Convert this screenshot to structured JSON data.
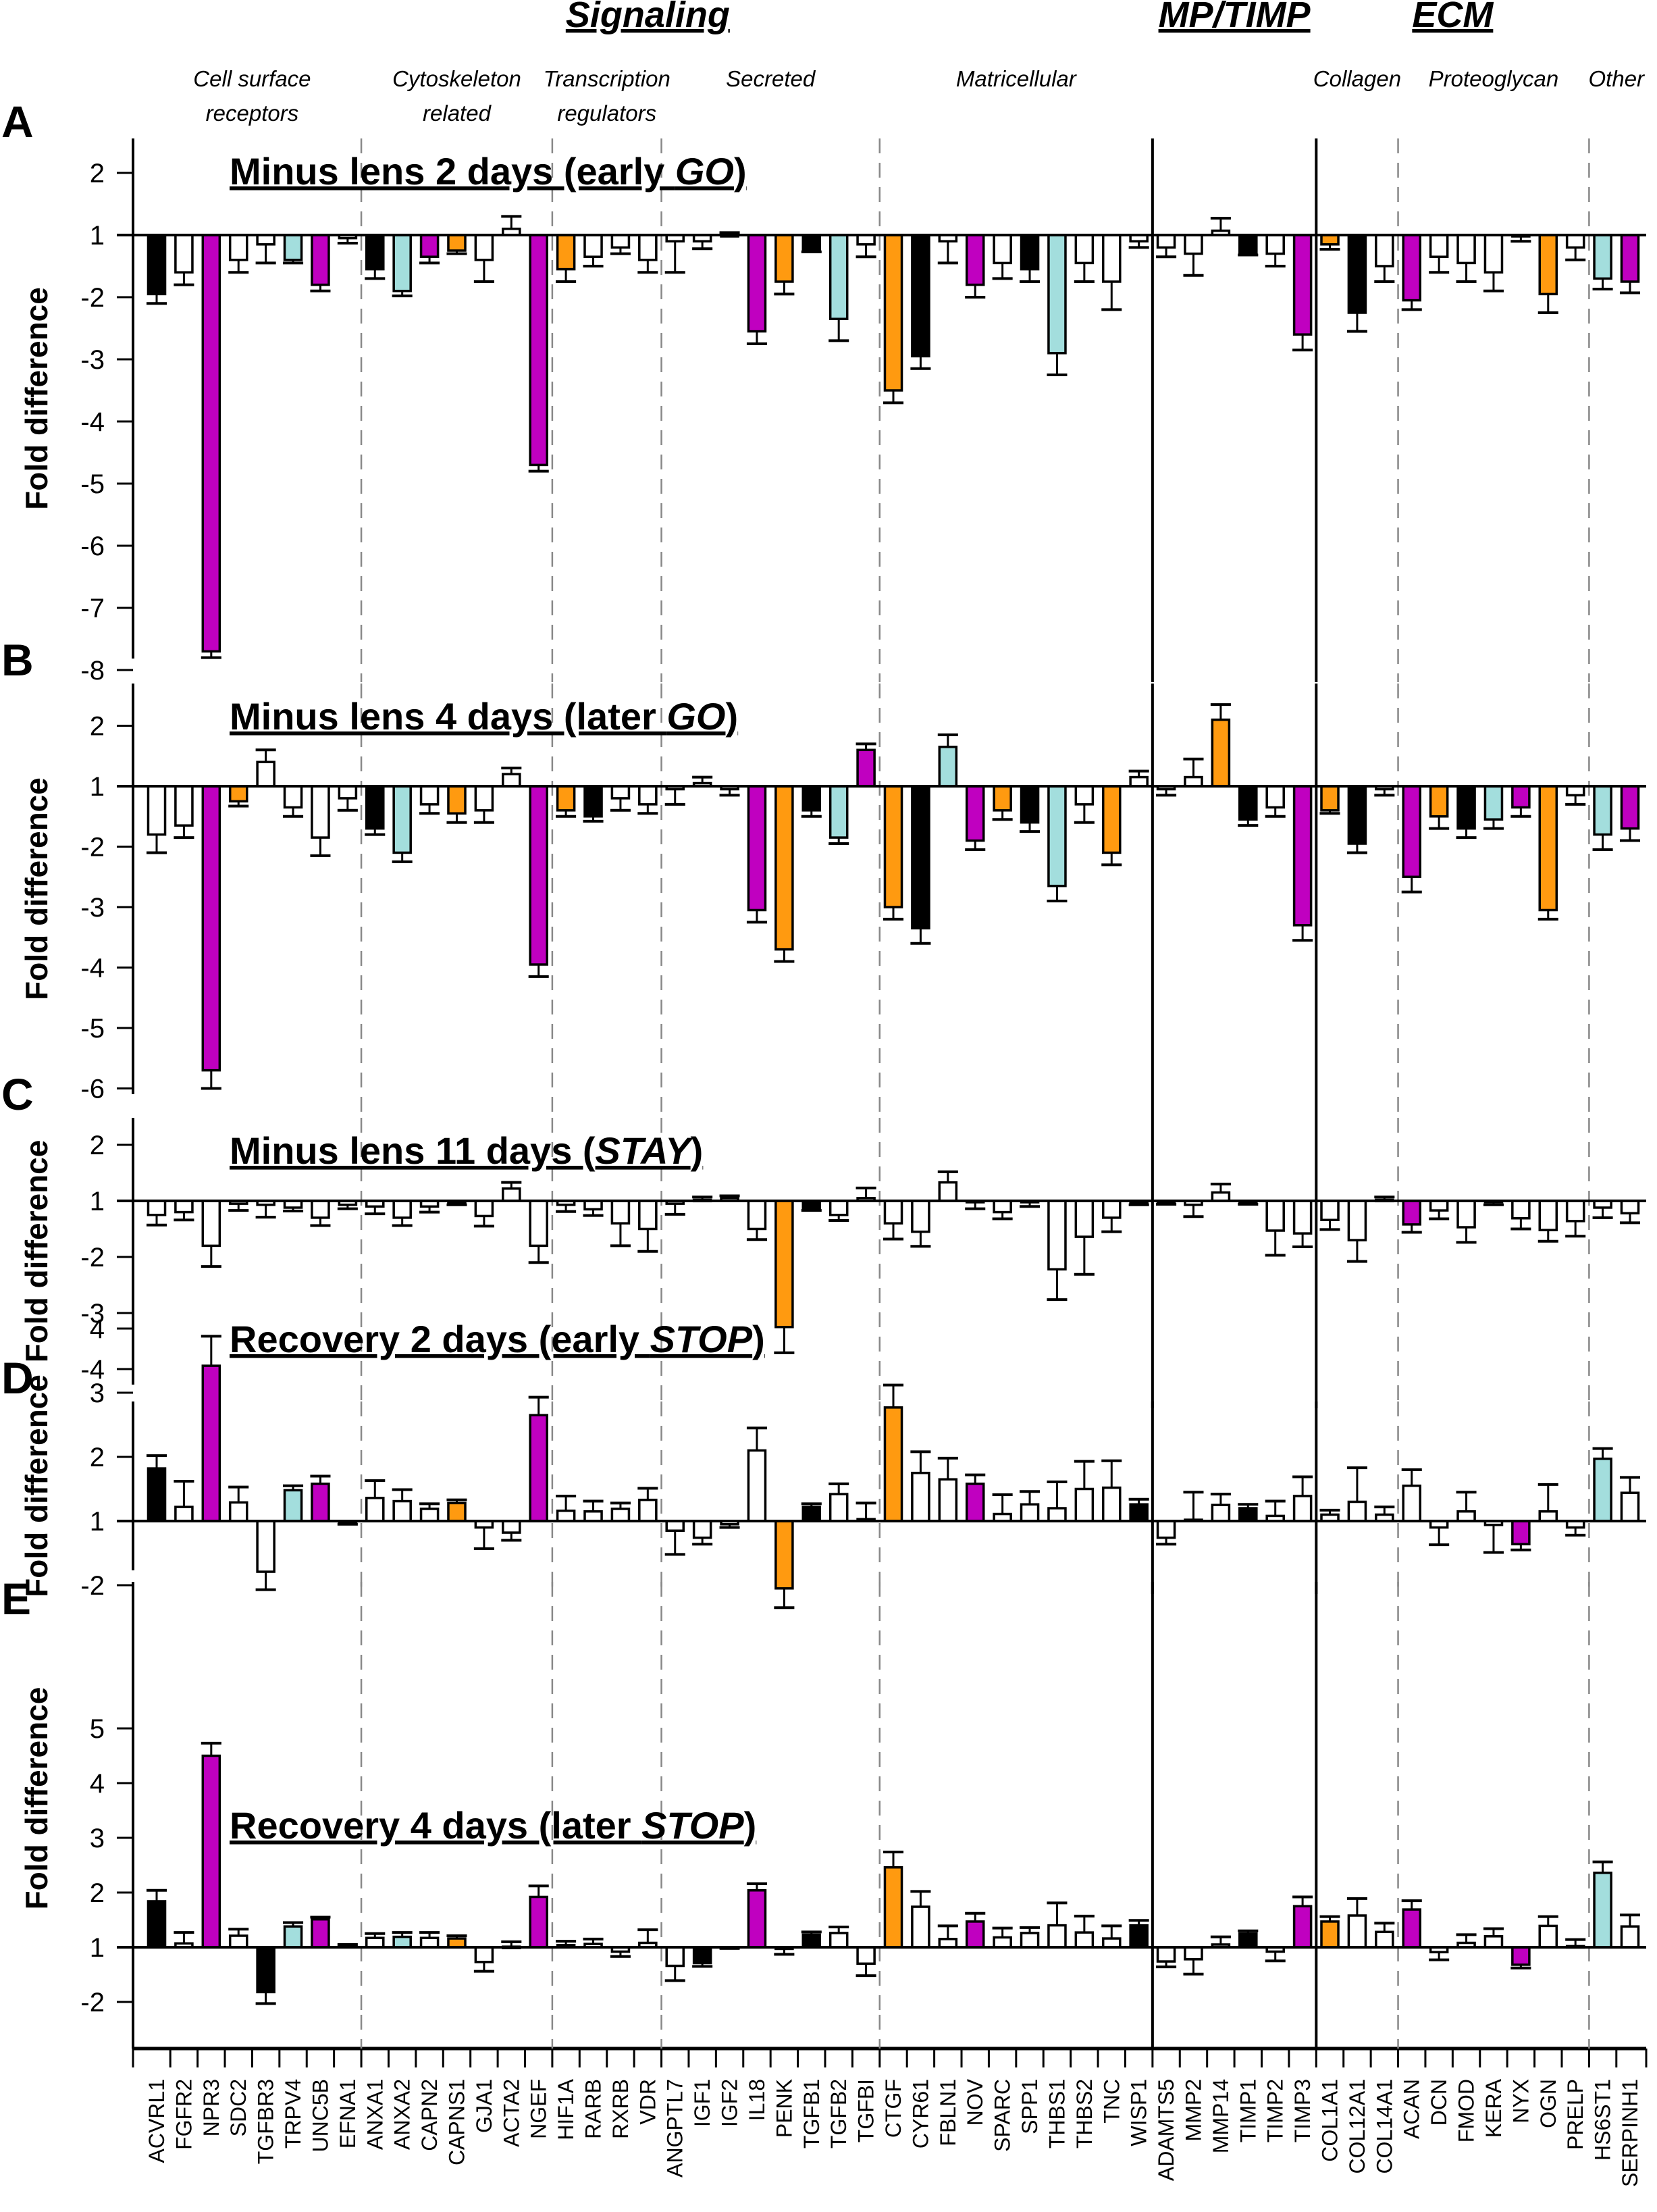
{
  "chart_data": {
    "type": "bar",
    "ylabel": "Fold difference",
    "categories_top": [
      {
        "name": "Signaling",
        "first": 0,
        "last": 36
      },
      {
        "name": "MP/TIMP",
        "first": 37,
        "last": 42
      },
      {
        "name": "ECM",
        "first": 43,
        "last": 52
      }
    ],
    "subgroups": [
      {
        "name": "Cell surface receptors",
        "lines": [
          "Cell surface",
          "receptors"
        ],
        "first": 0,
        "last": 7
      },
      {
        "name": "Cytoskeleton related",
        "lines": [
          "Cytoskeleton",
          "related"
        ],
        "first": 8,
        "last": 14
      },
      {
        "name": "Transcription regulators",
        "lines": [
          "Transcription",
          "regulators"
        ],
        "first": 15,
        "last": 18
      },
      {
        "name": "Secreted",
        "lines": [
          "Secreted"
        ],
        "first": 19,
        "last": 26
      },
      {
        "name": "Matricellular",
        "lines": [
          "Matricellular"
        ],
        "first": 27,
        "last": 36
      },
      {
        "name": "MP/TIMP",
        "lines": [],
        "first": 37,
        "last": 42
      },
      {
        "name": "Collagen",
        "lines": [
          "Collagen"
        ],
        "first": 43,
        "last": 45
      },
      {
        "name": "Proteoglycan",
        "lines": [
          "Proteoglycan"
        ],
        "first": 46,
        "last": 52
      },
      {
        "name": "Other",
        "lines": [
          "Other"
        ],
        "first": 53,
        "last": 54
      }
    ],
    "separators": [
      {
        "after": 7,
        "style": "dashed"
      },
      {
        "after": 14,
        "style": "dashed"
      },
      {
        "after": 18,
        "style": "dashed"
      },
      {
        "after": 26,
        "style": "dashed"
      },
      {
        "after": 36,
        "style": "solid"
      },
      {
        "after": 42,
        "style": "solid"
      },
      {
        "after": 45,
        "style": "dashed"
      },
      {
        "after": 52,
        "style": "dashed"
      }
    ],
    "genes": [
      "ACVRL1",
      "FGFR2",
      "NPR3",
      "SDC2",
      "TGFBR3",
      "TRPV4",
      "UNC5B",
      "EFNA1",
      "ANXA1",
      "ANXA2",
      "CAPN2",
      "CAPNS1",
      "GJA1",
      "ACTA2",
      "NGEF",
      "HIF1A",
      "RARB",
      "RXRB",
      "VDR",
      "ANGPTL7",
      "IGF1",
      "IGF2",
      "IL18",
      "PENK",
      "TGFB1",
      "TGFB2",
      "TGFBI",
      "CTGF",
      "CYR61",
      "FBLN1",
      "NOV",
      "SPARC",
      "SPP1",
      "THBS1",
      "THBS2",
      "TNC",
      "WISP1",
      "ADAMTS5",
      "MMP2",
      "MMP14",
      "TIMP1",
      "TIMP2",
      "TIMP3",
      "COL1A1",
      "COL12A1",
      "COL14A1",
      "ACAN",
      "DCN",
      "FMOD",
      "KERA",
      "NYX",
      "OGN",
      "PRELP",
      "HS6ST1",
      "SERPINH1"
    ],
    "colors": {
      "w": "#ffffff",
      "k": "#000000",
      "m": "#c000c0",
      "o": "#ff9a10",
      "c": "#a3dedd"
    },
    "panels": [
      {
        "letter": "A",
        "title_pre": "Minus lens 2 days (early ",
        "title_em": "GO",
        "title_post": ")",
        "yticks": [
          2,
          1,
          -2,
          -3,
          -4,
          -5,
          -6,
          -7,
          -8
        ],
        "yrange": [
          2.5,
          -8
        ],
        "values": [
          -1.95,
          -1.6,
          -7.7,
          -1.4,
          -1.15,
          -1.4,
          -1.8,
          -1.05,
          -1.55,
          -1.9,
          -1.35,
          -1.25,
          -1.4,
          1.1,
          -4.7,
          -1.55,
          -1.35,
          -1.2,
          -1.4,
          -1.1,
          -1.1,
          1.0,
          -2.55,
          -1.75,
          -1.25,
          -2.35,
          -1.15,
          -3.5,
          -2.95,
          -1.1,
          -1.8,
          -1.45,
          -1.55,
          -2.9,
          -1.45,
          -1.75,
          -1.1,
          -1.2,
          -1.3,
          1.07,
          -1.3,
          -1.3,
          -2.6,
          -1.15,
          -2.25,
          -1.5,
          -2.05,
          -1.35,
          -1.45,
          -1.6,
          -1.0,
          -1.95,
          -1.2,
          -1.7,
          -1.75
        ],
        "errors": [
          0.15,
          0.2,
          0.1,
          0.2,
          0.3,
          0.05,
          0.1,
          0.08,
          0.15,
          0.08,
          0.1,
          0.05,
          0.35,
          0.2,
          0.1,
          0.2,
          0.15,
          0.1,
          0.2,
          0.5,
          0.12,
          0.04,
          0.2,
          0.2,
          0.02,
          0.35,
          0.2,
          0.2,
          0.2,
          0.35,
          0.2,
          0.25,
          0.2,
          0.35,
          0.3,
          0.45,
          0.1,
          0.15,
          0.35,
          0.2,
          0.02,
          0.2,
          0.25,
          0.08,
          0.3,
          0.25,
          0.15,
          0.25,
          0.3,
          0.3,
          0.1,
          0.3,
          0.2,
          0.17,
          0.18
        ],
        "fills": [
          "k",
          "w",
          "m",
          "w",
          "w",
          "c",
          "m",
          "w",
          "k",
          "c",
          "m",
          "o",
          "w",
          "w",
          "m",
          "o",
          "w",
          "w",
          "w",
          "w",
          "w",
          "w",
          "m",
          "o",
          "k",
          "c",
          "w",
          "o",
          "k",
          "w",
          "m",
          "w",
          "k",
          "c",
          "w",
          "w",
          "w",
          "w",
          "w",
          "w",
          "k",
          "w",
          "m",
          "o",
          "k",
          "w",
          "m",
          "w",
          "w",
          "w",
          "w",
          "o",
          "w",
          "c",
          "m"
        ]
      },
      {
        "letter": "B",
        "title_pre": "Minus lens 4 days (later ",
        "title_em": "GO",
        "title_post": ")",
        "yticks": [
          2,
          1,
          -2,
          -3,
          -4,
          -5,
          -6
        ],
        "yrange": [
          2.5,
          -6
        ],
        "values": [
          -1.8,
          -1.65,
          -5.7,
          -1.25,
          1.4,
          -1.35,
          -1.85,
          -1.2,
          -1.7,
          -2.1,
          -1.3,
          -1.45,
          -1.4,
          1.2,
          -3.95,
          -1.4,
          -1.5,
          -1.2,
          -1.3,
          -1.05,
          1.05,
          -1.05,
          -3.05,
          -3.7,
          -1.4,
          -1.85,
          1.6,
          -3.0,
          -3.35,
          1.65,
          -1.9,
          -1.4,
          -1.6,
          -2.65,
          -1.3,
          -2.1,
          1.15,
          -1.05,
          1.15,
          2.1,
          -1.55,
          -1.35,
          -3.3,
          -1.4,
          -1.95,
          -1.05,
          -2.5,
          -1.5,
          -1.7,
          -1.55,
          -1.35,
          -3.05,
          -1.15,
          -1.8,
          -1.7
        ],
        "errors": [
          0.3,
          0.2,
          0.3,
          0.08,
          0.2,
          0.15,
          0.3,
          0.2,
          0.1,
          0.15,
          0.15,
          0.15,
          0.2,
          0.1,
          0.2,
          0.1,
          0.08,
          0.2,
          0.15,
          0.25,
          0.1,
          0.1,
          0.2,
          0.2,
          0.1,
          0.1,
          0.1,
          0.2,
          0.25,
          0.2,
          0.15,
          0.15,
          0.15,
          0.25,
          0.3,
          0.2,
          0.1,
          0.1,
          0.3,
          0.25,
          0.1,
          0.15,
          0.25,
          0.05,
          0.15,
          0.1,
          0.25,
          0.2,
          0.15,
          0.15,
          0.15,
          0.15,
          0.15,
          0.25,
          0.2
        ],
        "fills": [
          "w",
          "w",
          "m",
          "o",
          "w",
          "w",
          "w",
          "w",
          "k",
          "c",
          "w",
          "o",
          "w",
          "w",
          "m",
          "o",
          "k",
          "w",
          "w",
          "w",
          "w",
          "w",
          "m",
          "o",
          "k",
          "c",
          "m",
          "o",
          "k",
          "c",
          "m",
          "o",
          "k",
          "c",
          "w",
          "o",
          "w",
          "w",
          "w",
          "o",
          "k",
          "w",
          "m",
          "o",
          "k",
          "w",
          "m",
          "o",
          "k",
          "c",
          "m",
          "o",
          "w",
          "c",
          "m"
        ]
      },
      {
        "letter": "C",
        "title_pre": "Minus lens 11 days (",
        "title_em": "STAY",
        "title_post": ")",
        "yticks": [
          2,
          1,
          -2,
          -3,
          -4
        ],
        "yrange": [
          2,
          -4
        ],
        "values": [
          -1.25,
          -1.2,
          -1.8,
          -1.05,
          -1.07,
          -1.12,
          -1.3,
          -1.07,
          -1.1,
          -1.3,
          -1.1,
          -1.03,
          -1.27,
          1.22,
          -1.8,
          -1.07,
          -1.15,
          -1.4,
          -1.5,
          -1.05,
          1.02,
          1.05,
          -1.5,
          -3.25,
          -1.15,
          -1.25,
          1.05,
          -1.4,
          -1.55,
          1.33,
          -1.02,
          -1.2,
          -1.02,
          -2.22,
          -1.64,
          -1.3,
          -1.03,
          -1.02,
          -1.07,
          1.15,
          -1.03,
          -1.53,
          -1.58,
          -1.34,
          -1.7,
          1.02,
          -1.42,
          -1.17,
          -1.47,
          -1.02,
          -1.31,
          -1.52,
          -1.36,
          -1.12,
          -1.22
        ],
        "errors": [
          0.18,
          0.14,
          0.37,
          0.12,
          0.22,
          0.06,
          0.14,
          0.07,
          0.13,
          0.14,
          0.1,
          0.04,
          0.18,
          0.11,
          0.3,
          0.12,
          0.11,
          0.4,
          0.4,
          0.19,
          0.05,
          0.04,
          0.19,
          0.46,
          0.02,
          0.1,
          0.18,
          0.28,
          0.26,
          0.19,
          0.12,
          0.12,
          0.08,
          0.54,
          0.67,
          0.25,
          0.04,
          0.04,
          0.21,
          0.15,
          0.03,
          0.44,
          0.24,
          0.17,
          0.38,
          0.05,
          0.14,
          0.15,
          0.27,
          0.05,
          0.19,
          0.2,
          0.27,
          0.18,
          0.17
        ],
        "fills": [
          "w",
          "w",
          "w",
          "w",
          "w",
          "w",
          "w",
          "w",
          "w",
          "w",
          "w",
          "w",
          "w",
          "w",
          "w",
          "w",
          "w",
          "w",
          "w",
          "w",
          "w",
          "w",
          "w",
          "o",
          "k",
          "w",
          "w",
          "w",
          "w",
          "w",
          "w",
          "w",
          "w",
          "w",
          "w",
          "w",
          "w",
          "w",
          "w",
          "w",
          "w",
          "w",
          "w",
          "w",
          "w",
          "w",
          "m",
          "w",
          "w",
          "w",
          "w",
          "w",
          "w",
          "w",
          "w"
        ]
      },
      {
        "letter": "D",
        "title_pre": "Recovery 2 days (early ",
        "title_em": "STOP",
        "title_post": ")",
        "yticks": [
          4,
          3,
          2,
          1,
          -2
        ],
        "yrange": [
          4.5,
          -2.5
        ],
        "values": [
          1.82,
          1.22,
          3.42,
          1.29,
          -1.79,
          1.48,
          1.58,
          -1.0,
          1.36,
          1.31,
          1.19,
          1.28,
          -1.1,
          -1.18,
          2.65,
          1.16,
          1.15,
          1.19,
          1.33,
          -1.15,
          -1.26,
          -1.05,
          2.1,
          -2.05,
          1.22,
          1.42,
          1.03,
          2.77,
          1.75,
          1.65,
          1.58,
          1.11,
          1.26,
          1.2,
          1.5,
          1.52,
          1.26,
          -1.26,
          1.02,
          1.25,
          1.2,
          1.08,
          1.39,
          1.1,
          1.3,
          1.1,
          1.55,
          -1.1,
          1.15,
          -1.06,
          -1.36,
          1.15,
          -1.1,
          1.97,
          1.44
        ],
        "errors": [
          0.2,
          0.4,
          0.46,
          0.24,
          0.28,
          0.07,
          0.12,
          0.05,
          0.27,
          0.18,
          0.08,
          0.05,
          0.33,
          0.12,
          0.28,
          0.23,
          0.16,
          0.09,
          0.18,
          0.37,
          0.1,
          0.05,
          0.35,
          0.3,
          0.05,
          0.16,
          0.25,
          0.35,
          0.33,
          0.33,
          0.14,
          0.3,
          0.2,
          0.41,
          0.43,
          0.42,
          0.08,
          0.1,
          0.43,
          0.17,
          0.06,
          0.23,
          0.3,
          0.07,
          0.53,
          0.12,
          0.25,
          0.27,
          0.3,
          0.43,
          0.09,
          0.42,
          0.12,
          0.16,
          0.24
        ],
        "fills": [
          "k",
          "w",
          "m",
          "w",
          "w",
          "c",
          "m",
          "w",
          "w",
          "w",
          "w",
          "o",
          "w",
          "w",
          "m",
          "w",
          "w",
          "w",
          "w",
          "w",
          "w",
          "w",
          "w",
          "o",
          "k",
          "w",
          "w",
          "o",
          "w",
          "w",
          "m",
          "w",
          "w",
          "w",
          "w",
          "w",
          "k",
          "w",
          "w",
          "w",
          "k",
          "w",
          "w",
          "w",
          "w",
          "w",
          "w",
          "w",
          "w",
          "w",
          "m",
          "w",
          "w",
          "c",
          "w"
        ]
      },
      {
        "letter": "E",
        "title_pre": "Recovery 4 days (later ",
        "title_em": "STOP",
        "title_post": ")",
        "yticks": [
          5,
          4,
          3,
          2,
          1,
          -2
        ],
        "yrange": [
          5,
          -2.5
        ],
        "values": [
          1.84,
          1.07,
          4.5,
          1.21,
          -1.82,
          1.38,
          1.51,
          1.03,
          1.17,
          1.19,
          1.17,
          1.16,
          -1.27,
          1.01,
          1.92,
          1.04,
          1.06,
          -1.08,
          1.08,
          -1.34,
          -1.29,
          -1.0,
          2.04,
          -1.03,
          1.23,
          1.26,
          -1.3,
          2.46,
          1.74,
          1.15,
          1.47,
          1.18,
          1.26,
          1.4,
          1.27,
          1.16,
          1.4,
          -1.26,
          -1.22,
          1.05,
          1.25,
          -1.08,
          1.75,
          1.47,
          1.58,
          1.28,
          1.69,
          -1.09,
          1.08,
          1.2,
          -1.32,
          1.39,
          1.02,
          2.36,
          1.38
        ],
        "errors": [
          0.2,
          0.2,
          0.23,
          0.12,
          0.21,
          0.07,
          0.04,
          0.02,
          0.08,
          0.08,
          0.1,
          0.05,
          0.17,
          0.09,
          0.2,
          0.07,
          0.09,
          0.09,
          0.24,
          0.27,
          0.06,
          0.02,
          0.12,
          0.1,
          0.05,
          0.11,
          0.22,
          0.28,
          0.28,
          0.24,
          0.15,
          0.17,
          0.1,
          0.41,
          0.3,
          0.23,
          0.09,
          0.1,
          0.27,
          0.14,
          0.05,
          0.17,
          0.17,
          0.09,
          0.31,
          0.16,
          0.16,
          0.14,
          0.15,
          0.14,
          0.06,
          0.17,
          0.12,
          0.2,
          0.21
        ],
        "fills": [
          "k",
          "w",
          "m",
          "w",
          "k",
          "c",
          "m",
          "k",
          "w",
          "c",
          "w",
          "o",
          "w",
          "w",
          "m",
          "w",
          "w",
          "w",
          "w",
          "w",
          "k",
          "k",
          "m",
          "w",
          "k",
          "w",
          "w",
          "o",
          "w",
          "w",
          "m",
          "w",
          "w",
          "w",
          "w",
          "w",
          "k",
          "w",
          "w",
          "w",
          "k",
          "w",
          "m",
          "o",
          "w",
          "w",
          "m",
          "w",
          "w",
          "w",
          "m",
          "w",
          "w",
          "c",
          "w"
        ]
      }
    ]
  }
}
